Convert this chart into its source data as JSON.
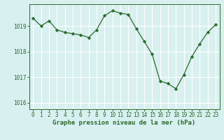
{
  "x": [
    0,
    1,
    2,
    3,
    4,
    5,
    6,
    7,
    8,
    9,
    10,
    11,
    12,
    13,
    14,
    15,
    16,
    17,
    18,
    19,
    20,
    21,
    22,
    23
  ],
  "y": [
    1019.3,
    1019.0,
    1019.2,
    1018.85,
    1018.75,
    1018.7,
    1018.65,
    1018.55,
    1018.85,
    1019.4,
    1019.6,
    1019.5,
    1019.45,
    1018.9,
    1018.4,
    1017.9,
    1016.85,
    1016.75,
    1016.55,
    1017.1,
    1017.8,
    1018.3,
    1018.75,
    1019.05
  ],
  "line_color": "#2d6a2d",
  "marker": "D",
  "markersize": 2.2,
  "linewidth": 0.9,
  "background_color": "#d8f0f0",
  "grid_color": "#ffffff",
  "ylabel_ticks": [
    1016,
    1017,
    1018,
    1019
  ],
  "xticks": [
    0,
    1,
    2,
    3,
    4,
    5,
    6,
    7,
    8,
    9,
    10,
    11,
    12,
    13,
    14,
    15,
    16,
    17,
    18,
    19,
    20,
    21,
    22,
    23
  ],
  "ylim": [
    1015.75,
    1019.85
  ],
  "xlim": [
    -0.5,
    23.5
  ],
  "xlabel": "Graphe pression niveau de la mer (hPa)",
  "xlabel_fontsize": 6.5,
  "tick_fontsize": 5.5,
  "tick_color": "#2d6a2d",
  "label_color": "#2d6a2d",
  "spine_color": "#2d6a2d"
}
